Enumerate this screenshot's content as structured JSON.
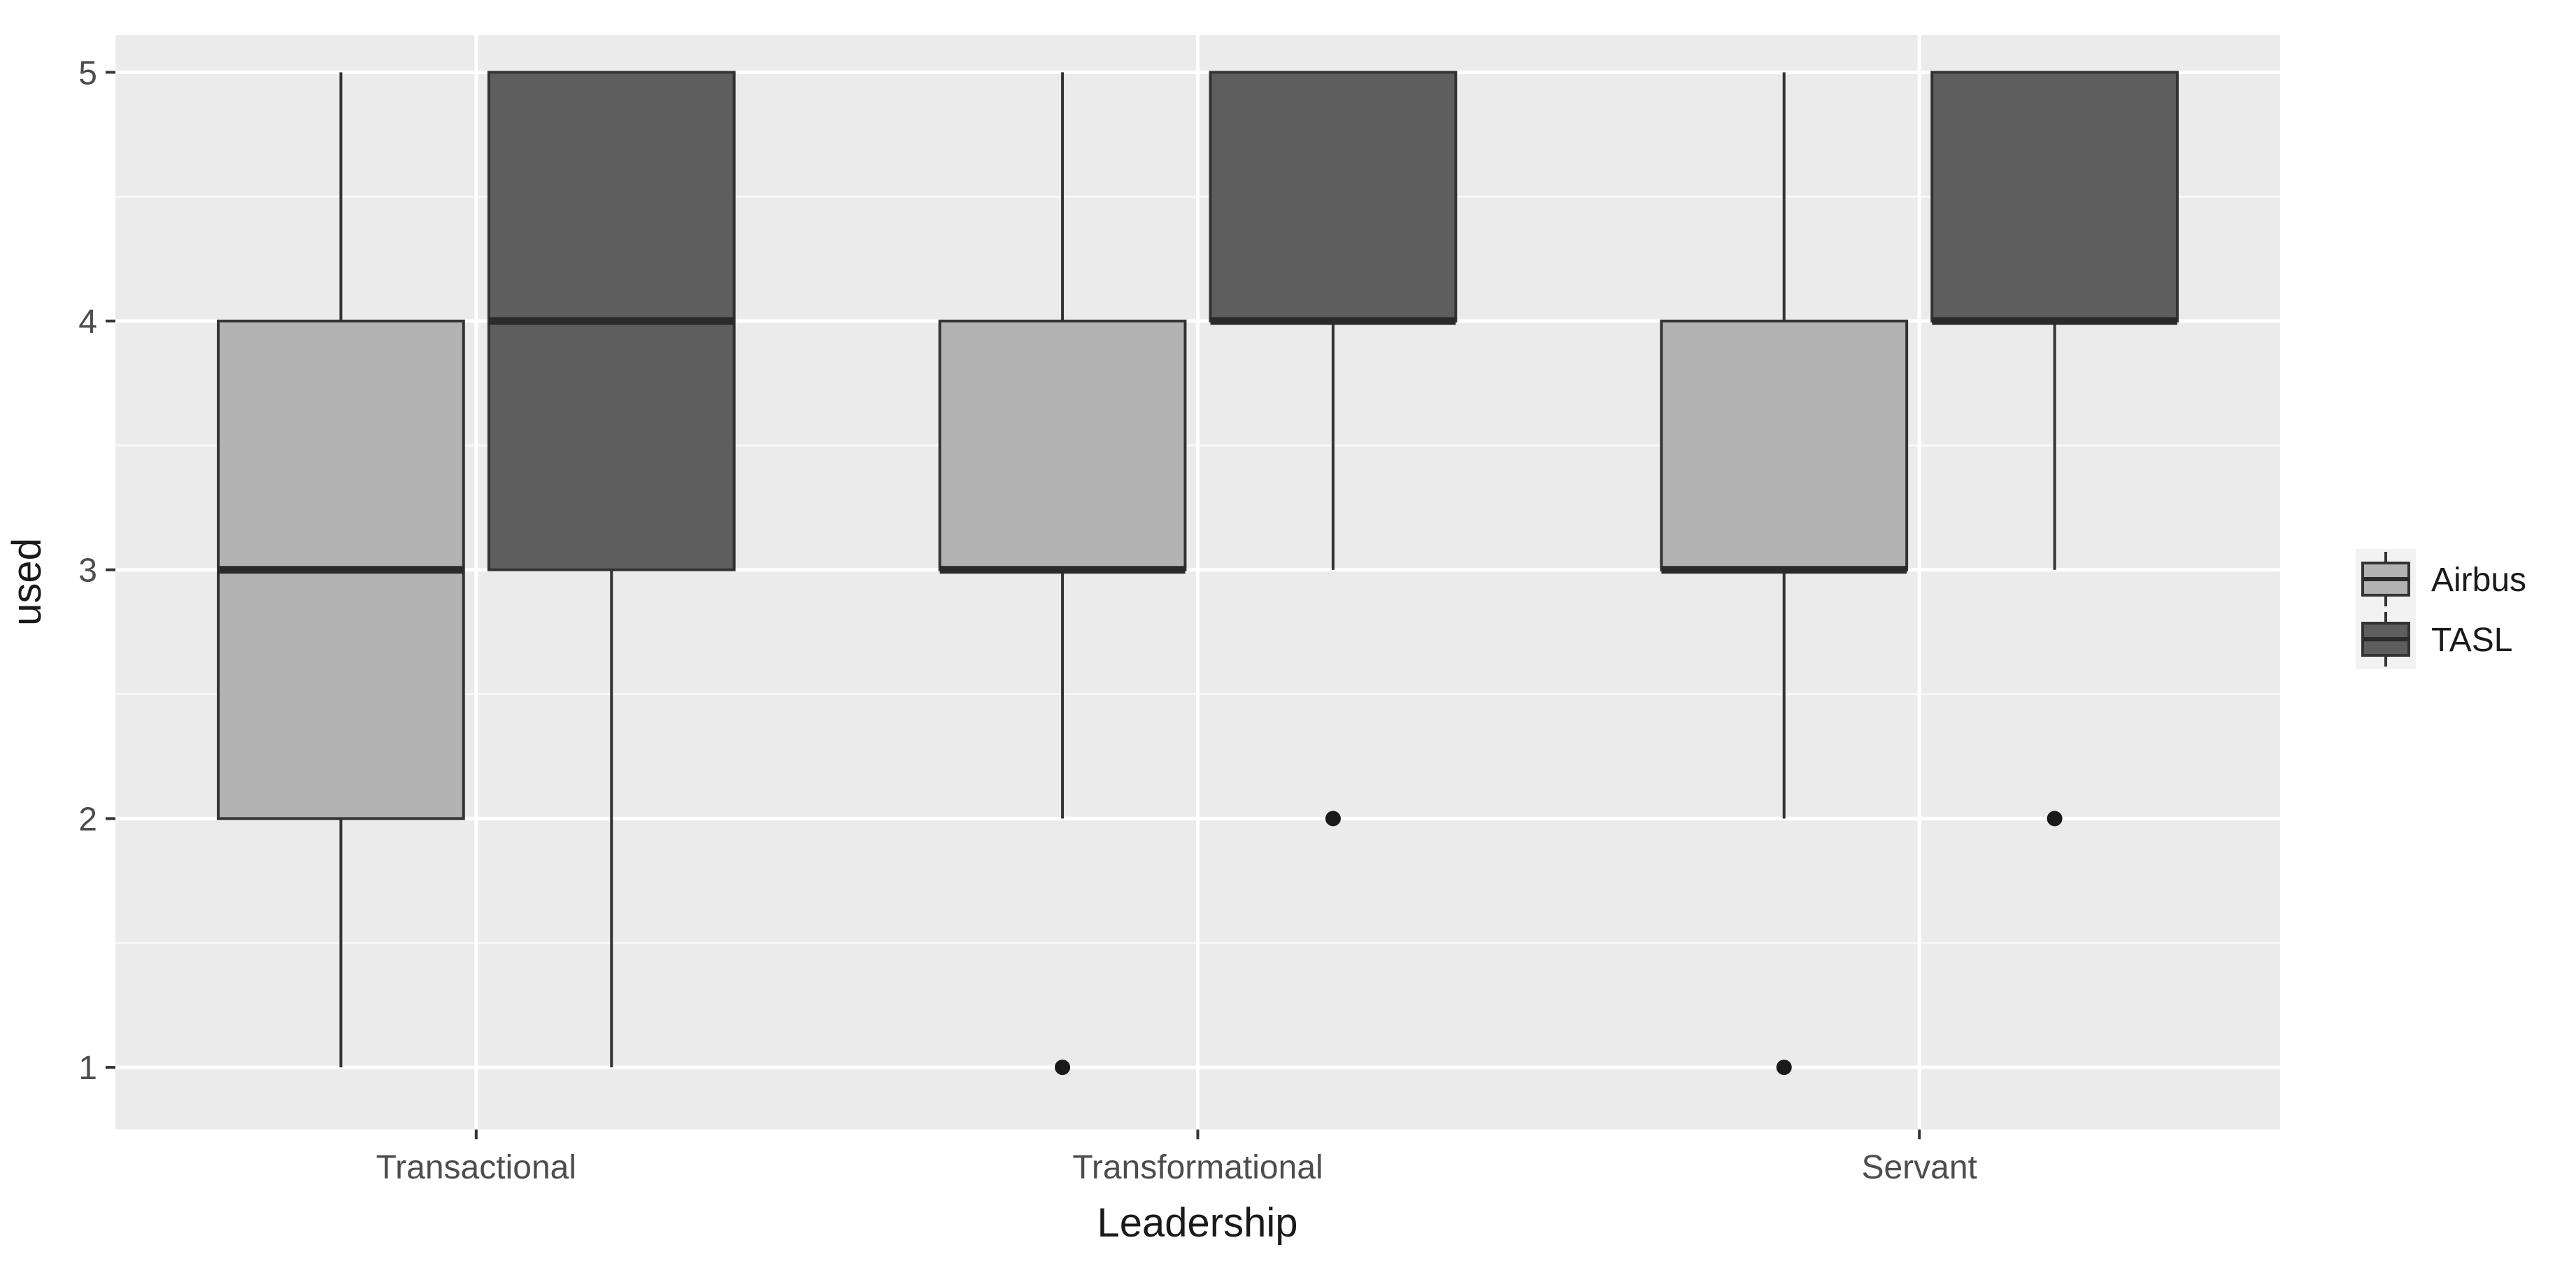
{
  "chart_data": {
    "type": "boxplot",
    "title": "",
    "xlabel": "Leadership",
    "ylabel": "used",
    "categories": [
      "Transactional",
      "Transformational",
      "Servant"
    ],
    "ylim": [
      0.75,
      5.15
    ],
    "yticks": [
      1,
      2,
      3,
      4,
      5
    ],
    "grid": true,
    "legend": {
      "placement": "right",
      "entries": [
        "Airbus",
        "TASL"
      ]
    },
    "series": [
      {
        "name": "Airbus",
        "color": "#b3b3b3",
        "boxes": [
          {
            "category": "Transactional",
            "whisker_low": 1,
            "q1": 2,
            "median": 3,
            "q3": 4,
            "whisker_high": 5,
            "outliers": []
          },
          {
            "category": "Transformational",
            "whisker_low": 2,
            "q1": 3,
            "median": 3,
            "q3": 4,
            "whisker_high": 5,
            "outliers": [
              1
            ]
          },
          {
            "category": "Servant",
            "whisker_low": 2,
            "q1": 3,
            "median": 3,
            "q3": 4,
            "whisker_high": 5,
            "outliers": [
              1
            ]
          }
        ]
      },
      {
        "name": "TASL",
        "color": "#5e5e5e",
        "boxes": [
          {
            "category": "Transactional",
            "whisker_low": 1,
            "q1": 3,
            "median": 4,
            "q3": 5,
            "whisker_high": 5,
            "outliers": []
          },
          {
            "category": "Transformational",
            "whisker_low": 3,
            "q1": 4,
            "median": 4,
            "q3": 5,
            "whisker_high": 5,
            "outliers": [
              2
            ]
          },
          {
            "category": "Servant",
            "whisker_low": 3,
            "q1": 4,
            "median": 4,
            "q3": 5,
            "whisker_high": 5,
            "outliers": [
              2
            ]
          }
        ]
      }
    ]
  }
}
